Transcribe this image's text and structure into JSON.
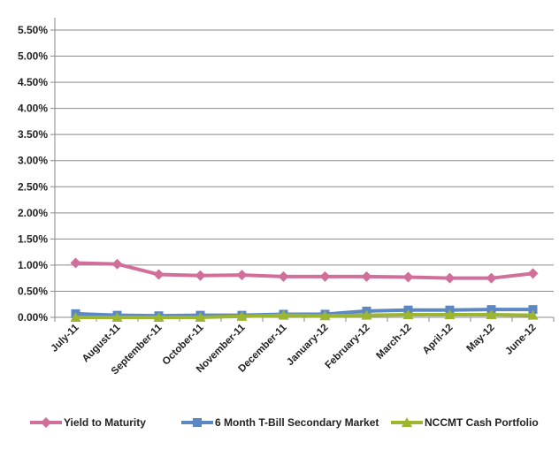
{
  "chart_data": {
    "type": "line",
    "categories": [
      "July-11",
      "August-11",
      "September-11",
      "October-11",
      "November-11",
      "December-11",
      "January-12",
      "February-12",
      "March-12",
      "April-12",
      "May-12",
      "June-12"
    ],
    "y_ticks": [
      "0.00%",
      "0.50%",
      "1.00%",
      "1.50%",
      "2.00%",
      "2.50%",
      "3.00%",
      "3.50%",
      "4.00%",
      "4.50%",
      "5.00%",
      "5.50%"
    ],
    "ylim": [
      0,
      5.5
    ],
    "grid": true,
    "legend_position": "bottom",
    "series": [
      {
        "name": "Yield to Maturity",
        "color": "#d16f9a",
        "marker": "diamond",
        "values": [
          1.04,
          1.02,
          0.82,
          0.8,
          0.81,
          0.78,
          0.78,
          0.78,
          0.77,
          0.75,
          0.75,
          0.84
        ]
      },
      {
        "name": "6 Month T-Bill Secondary Market",
        "color": "#5b87c5",
        "marker": "square",
        "values": [
          0.07,
          0.04,
          0.03,
          0.04,
          0.04,
          0.06,
          0.06,
          0.12,
          0.14,
          0.14,
          0.15,
          0.15
        ]
      },
      {
        "name": "NCCMT Cash Portfolio",
        "color": "#9db62f",
        "marker": "triangle",
        "values": [
          0.0,
          0.0,
          0.0,
          0.0,
          0.02,
          0.04,
          0.03,
          0.04,
          0.05,
          0.05,
          0.05,
          0.04
        ]
      }
    ]
  }
}
